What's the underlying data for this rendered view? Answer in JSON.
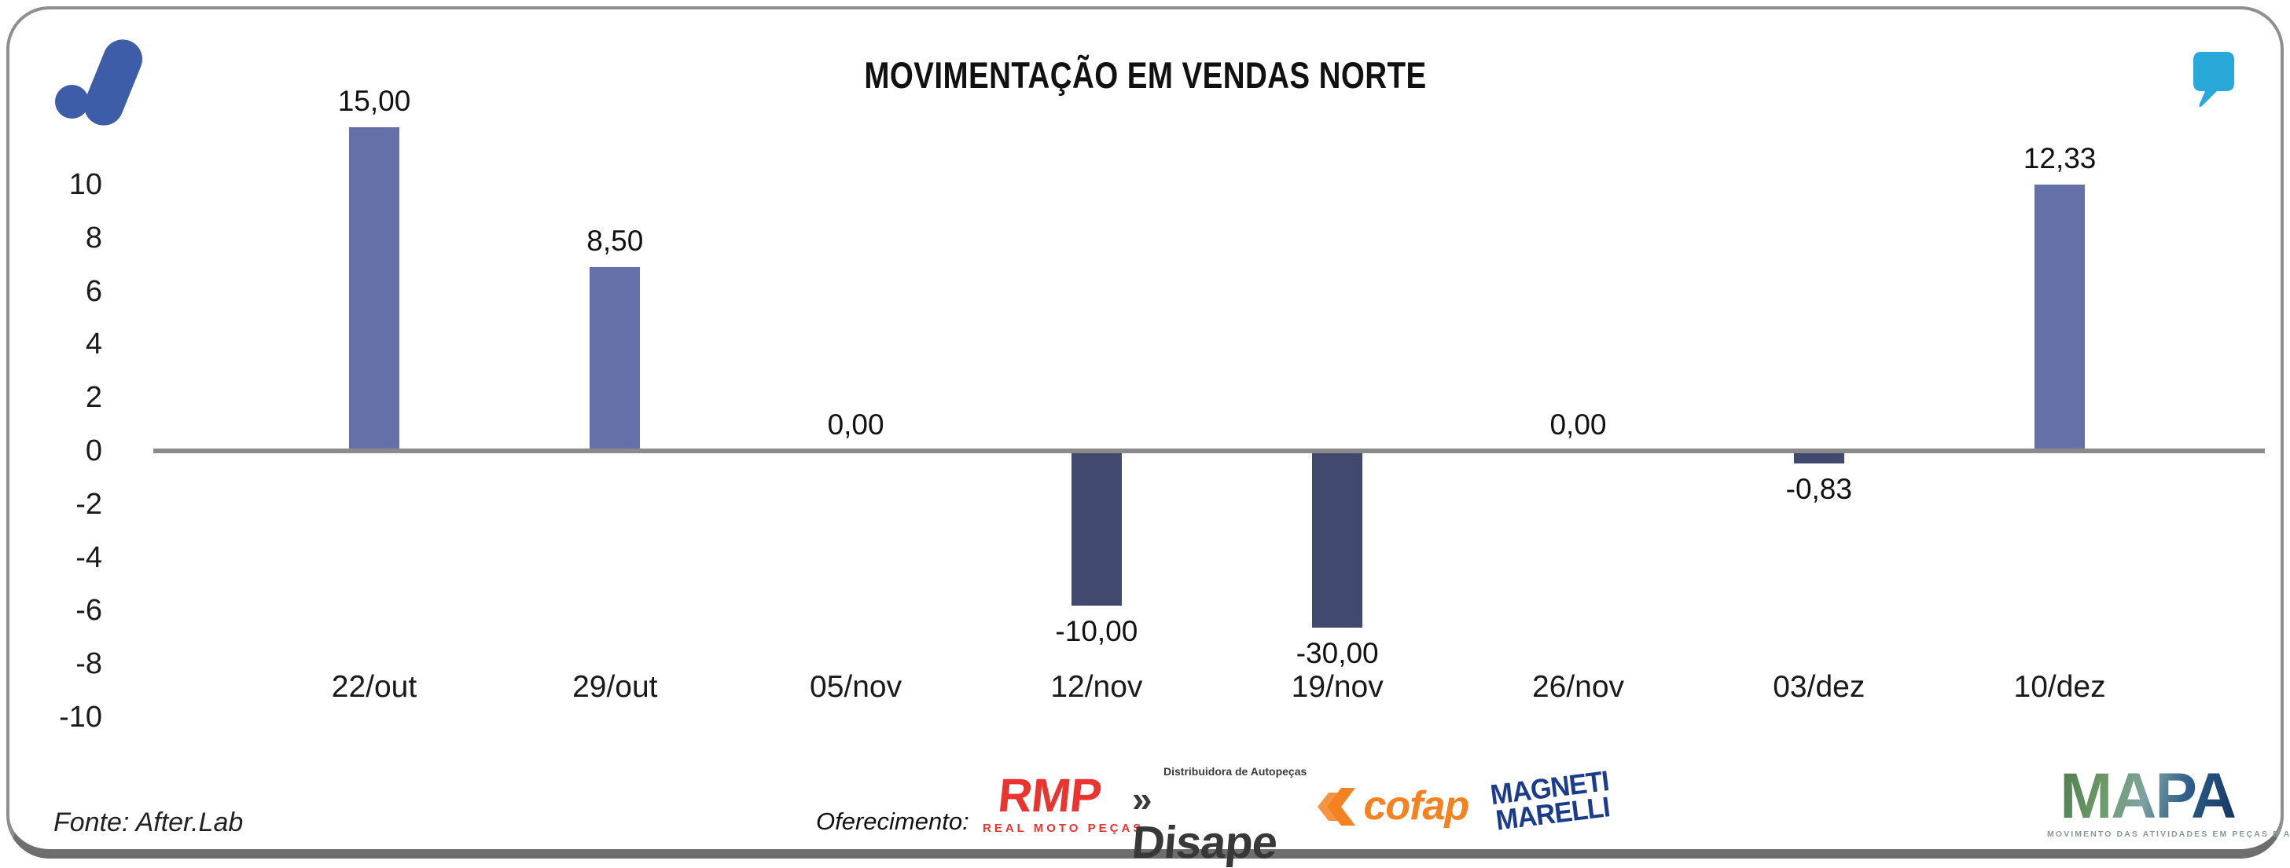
{
  "header": {
    "title": "MOVIMENTAÇÃO EM VENDAS NORTE"
  },
  "icons": {
    "brand_logo": "afterlab-mark",
    "quote_mark": "quote-comma",
    "brand_color": "#3d5da9",
    "quote_color": "#29a8da"
  },
  "chart_data": {
    "type": "bar",
    "title": "MOVIMENTAÇÃO EM VENDAS NORTE",
    "categories": [
      "22/out",
      "29/out",
      "05/nov",
      "12/nov",
      "19/nov",
      "26/nov",
      "03/dez",
      "10/dez"
    ],
    "values": [
      15.0,
      8.5,
      0.0,
      -10.0,
      -30.0,
      0.0,
      -0.83,
      12.33
    ],
    "value_labels": [
      "15,00",
      "8,50",
      "0,00",
      "-10,00",
      "-30,00",
      "0,00",
      "-0,83",
      "12,33"
    ],
    "yticks": [
      10,
      8,
      6,
      4,
      2,
      0,
      -2,
      -4,
      -6,
      -8,
      -10
    ],
    "ylim": [
      -10,
      10
    ],
    "xlabel": "",
    "ylabel": "",
    "grid": false,
    "legend": false,
    "bar_color_positive": "#6670a8",
    "bar_color_negative": "#414a6e",
    "zero_line_color": "#8a8a8a"
  },
  "footer": {
    "source": "Fonte: After.Lab",
    "sponsor_label": "Oferecimento:",
    "sponsors": [
      {
        "name": "RMP",
        "sub": "REAL MOTO PEÇAS",
        "color": "#e8352f"
      },
      {
        "name": "Disape",
        "prefix": "»",
        "sub": "Distribuidora de Autopeças",
        "color": "#383838"
      },
      {
        "name": "cofap",
        "color": "#f58220"
      },
      {
        "name": "MAGNETI MARELLI",
        "line1": "MAGNETI",
        "line2": "MARELLI",
        "color": "#1b3c8c"
      }
    ],
    "mapa": {
      "name": "MAPA",
      "subtitle": "MOVIMENTO DAS ATIVIDADES EM PEÇAS E ACESSÓRIOS"
    }
  }
}
